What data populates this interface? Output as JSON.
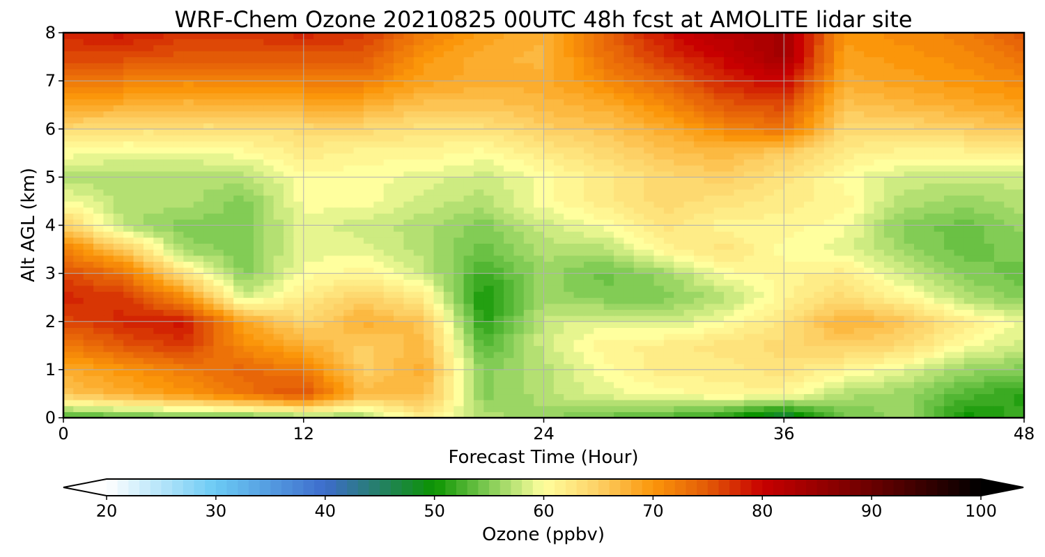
{
  "chart_data": {
    "type": "heatmap",
    "title": "WRF-Chem Ozone  20210825 00UTC 48h fcst at AMOLITE lidar site",
    "xlabel": "Forecast Time (Hour)",
    "ylabel": "Alt AGL (km)",
    "xlim": [
      0,
      48
    ],
    "ylim": [
      0,
      8
    ],
    "x_ticks": [
      0,
      12,
      24,
      36,
      48
    ],
    "y_ticks": [
      0,
      1,
      2,
      3,
      4,
      5,
      6,
      7,
      8
    ],
    "grid": true,
    "x": [
      0,
      3,
      6,
      9,
      12,
      15,
      18,
      21,
      24,
      27,
      30,
      33,
      36,
      39,
      42,
      45,
      48
    ],
    "y": [
      0,
      0.5,
      1,
      1.5,
      2,
      2.5,
      3,
      3.5,
      4,
      4.5,
      5,
      5.5,
      6,
      6.5,
      7,
      7.5,
      8
    ],
    "z": [
      [
        52,
        53,
        54,
        54,
        55,
        56,
        62,
        57,
        56,
        54,
        53,
        51,
        46,
        54,
        56,
        50,
        52
      ],
      [
        66,
        68,
        70,
        73,
        76,
        67,
        67,
        55,
        57,
        59,
        60,
        61,
        61,
        57,
        56,
        53,
        51
      ],
      [
        68,
        70,
        72,
        74,
        72,
        65,
        68,
        55,
        57,
        60,
        62,
        62,
        63,
        61,
        59,
        56,
        55
      ],
      [
        72,
        75,
        77,
        71,
        68,
        65,
        67,
        53,
        58,
        61,
        62,
        63,
        64,
        65,
        64,
        60,
        58
      ],
      [
        76,
        78,
        79,
        69,
        64,
        68,
        66,
        51,
        58,
        59,
        58,
        60,
        63,
        68,
        66,
        62,
        59
      ],
      [
        78,
        77,
        71,
        58,
        62,
        65,
        62,
        50,
        56,
        55,
        55,
        57,
        61,
        64,
        61,
        57,
        55
      ],
      [
        76,
        73,
        63,
        55,
        60,
        61,
        58,
        52,
        56,
        54,
        56,
        60,
        61,
        62,
        58,
        55,
        54
      ],
      [
        72,
        66,
        56,
        55,
        59,
        59,
        57,
        54,
        57,
        57,
        61,
        63,
        60,
        59,
        56,
        54,
        55
      ],
      [
        65,
        57,
        55,
        55,
        59,
        58,
        57,
        55,
        58,
        60,
        63,
        61,
        61,
        60,
        55,
        54,
        56
      ],
      [
        60,
        57,
        57,
        55,
        60,
        60,
        58,
        57,
        60,
        62,
        64,
        63,
        62,
        61,
        57,
        56,
        57
      ],
      [
        57,
        57,
        57,
        57,
        60,
        60,
        59,
        58,
        60,
        62,
        64,
        65,
        63,
        60,
        58,
        58,
        58
      ],
      [
        60,
        59,
        59,
        60,
        62,
        61,
        61,
        60,
        62,
        64,
        66,
        67,
        65,
        62,
        61,
        61,
        62
      ],
      [
        64,
        63,
        63,
        63,
        64,
        64,
        63,
        63,
        65,
        66,
        68,
        71,
        73,
        64,
        64,
        65,
        66
      ],
      [
        69,
        68,
        67,
        67,
        68,
        68,
        66,
        66,
        67,
        68,
        71,
        75,
        76,
        66,
        67,
        68,
        69
      ],
      [
        73,
        72,
        71,
        71,
        72,
        72,
        69,
        68,
        68,
        71,
        74,
        78,
        80,
        68,
        69,
        70,
        71
      ],
      [
        76,
        76,
        75,
        75,
        75,
        75,
        70,
        68,
        67,
        73,
        77,
        80,
        84,
        69,
        70,
        71,
        73
      ],
      [
        78,
        79,
        77,
        77,
        78,
        77,
        72,
        69,
        68,
        74,
        79,
        82,
        84,
        70,
        71,
        72,
        75
      ]
    ],
    "colorbar": {
      "label": "Ozone  (ppbv)",
      "min": 20,
      "max": 100,
      "ticks": [
        20,
        30,
        40,
        50,
        60,
        70,
        80,
        90,
        100
      ],
      "extend": "both",
      "stops": [
        [
          20,
          "#ffffff"
        ],
        [
          30,
          "#6bcaf4"
        ],
        [
          40,
          "#3d6ccc"
        ],
        [
          50,
          "#0b9400"
        ],
        [
          55,
          "#82cc55"
        ],
        [
          60,
          "#ffff9e"
        ],
        [
          65,
          "#fdd065"
        ],
        [
          70,
          "#fb960a"
        ],
        [
          75,
          "#e35a07"
        ],
        [
          80,
          "#c80000"
        ],
        [
          90,
          "#6a0000"
        ],
        [
          100,
          "#000000"
        ]
      ]
    }
  }
}
